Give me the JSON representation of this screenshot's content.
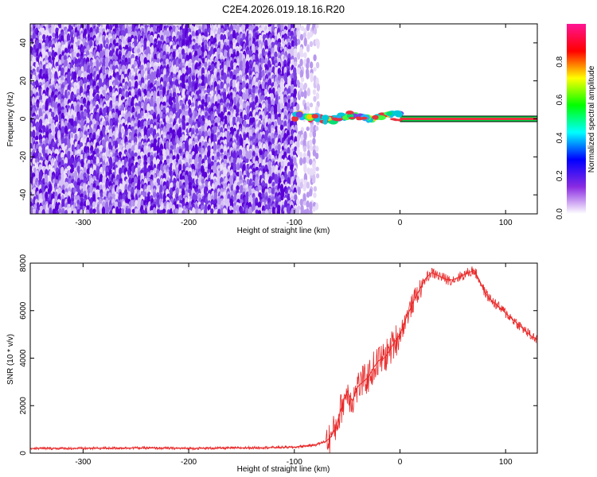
{
  "title": "C2E4.2026.019.18.16.R20",
  "chart_data": [
    {
      "type": "heatmap",
      "xlabel": "Height of straight line (km)",
      "ylabel": "Frequency (Hz)",
      "xlim": [
        -350,
        130
      ],
      "ylim": [
        -50,
        50
      ],
      "xticks": [
        -300,
        -200,
        -100,
        0,
        100
      ],
      "yticks": [
        -40,
        -20,
        0,
        20,
        40
      ],
      "noise_region_x": [
        -350,
        -78
      ],
      "signal_line_x": [
        -100,
        130
      ],
      "signal_line_freq": 0,
      "colorbar": {
        "label": "Normalized spectral amplitude",
        "range": [
          0.0,
          1.0
        ],
        "ticks": [
          0.0,
          0.2,
          0.4,
          0.6,
          0.8
        ],
        "stops": [
          "#ffffff",
          "#8a2be2",
          "#0000ff",
          "#00ffff",
          "#00ff00",
          "#ffff00",
          "#ff0000",
          "#ff1493"
        ]
      }
    },
    {
      "type": "line",
      "xlabel": "Height of straight line (km)",
      "ylabel": "SNR (10 * v/v)",
      "xlim": [
        -350,
        130
      ],
      "ylim": [
        0,
        8000
      ],
      "xticks": [
        -300,
        -200,
        -100,
        0,
        100
      ],
      "yticks": [
        0,
        2000,
        4000,
        6000,
        8000
      ],
      "line_color": "#e82828",
      "x": [
        -350,
        -300,
        -250,
        -200,
        -150,
        -100,
        -80,
        -70,
        -65,
        -60,
        -55,
        -50,
        -45,
        -40,
        -35,
        -30,
        -25,
        -20,
        -15,
        -10,
        -5,
        0,
        5,
        10,
        15,
        20,
        25,
        30,
        35,
        40,
        45,
        50,
        55,
        60,
        65,
        70,
        75,
        80,
        85,
        90,
        95,
        100,
        105,
        110,
        115,
        120,
        125,
        130
      ],
      "y": [
        200,
        200,
        220,
        200,
        220,
        250,
        350,
        500,
        700,
        1200,
        2000,
        2600,
        2200,
        2800,
        3000,
        3200,
        3600,
        3900,
        4000,
        4300,
        4700,
        5000,
        5600,
        6100,
        6600,
        7000,
        7400,
        7600,
        7500,
        7400,
        7300,
        7300,
        7400,
        7500,
        7600,
        7700,
        7300,
        6800,
        6500,
        6300,
        6100,
        5900,
        5700,
        5500,
        5300,
        5100,
        4900,
        4800
      ]
    }
  ]
}
